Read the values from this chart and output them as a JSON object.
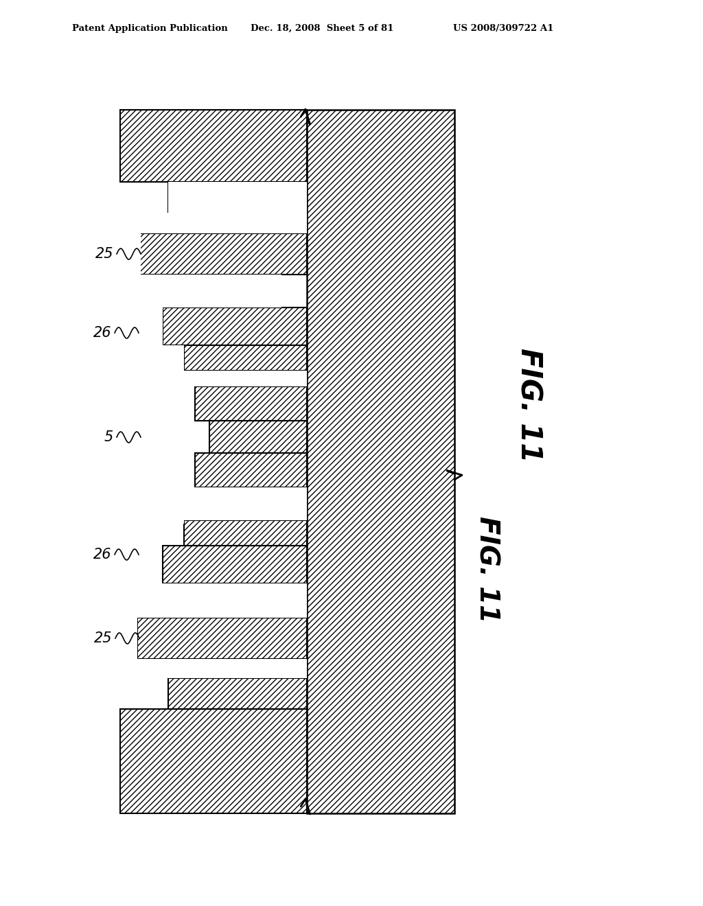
{
  "title": "FIG. 11",
  "header_left": "Patent Application Publication",
  "header_mid": "Dec. 18, 2008  Sheet 5 of 81",
  "header_right": "US 2008/309722 A1",
  "bg_color": "#ffffff",
  "hatch_color": "#000000",
  "line_color": "#000000",
  "fig_label": "FIG. 11",
  "labels": {
    "25_top": "25",
    "26_top": "26",
    "5": "5",
    "26_bot": "26",
    "25_bot": "25"
  }
}
